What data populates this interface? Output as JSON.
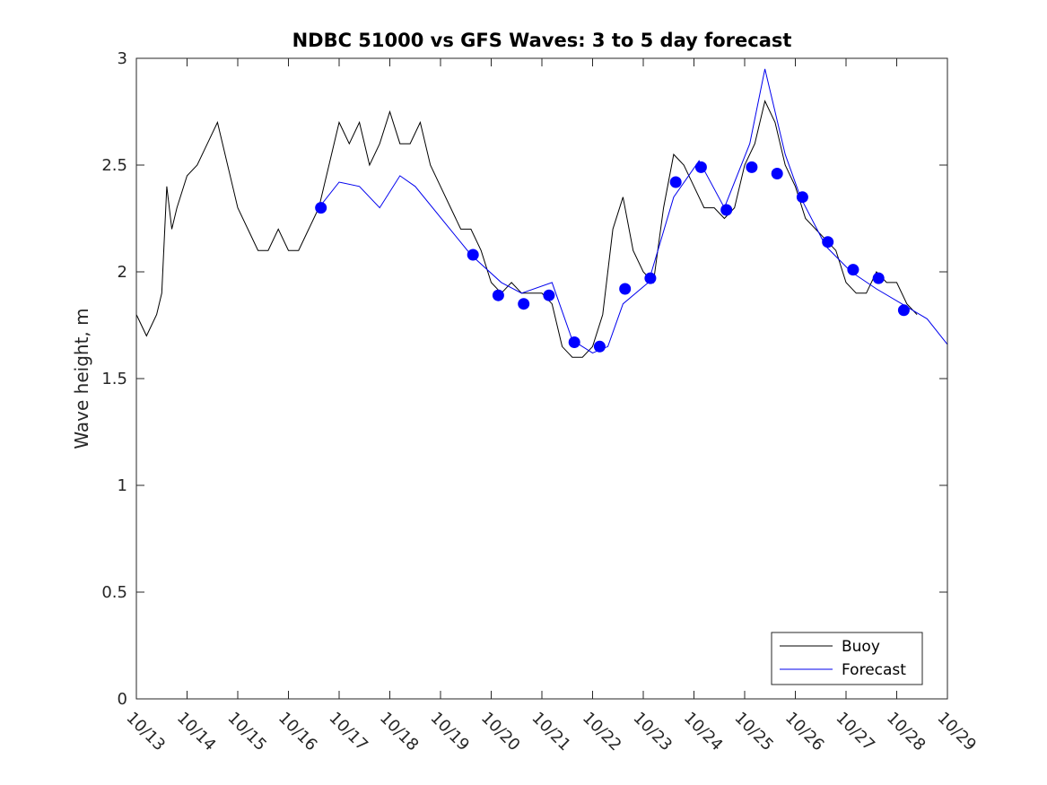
{
  "chart_data": {
    "type": "line",
    "title": "NDBC 51000 vs GFS Waves: 3 to 5 day forecast",
    "xlabel": "",
    "ylabel": "Wave height, m",
    "x_unit": "day of October",
    "xlim": [
      13,
      29
    ],
    "ylim": [
      0,
      3
    ],
    "x_ticks": [
      13,
      14,
      15,
      16,
      17,
      18,
      19,
      20,
      21,
      22,
      23,
      24,
      25,
      26,
      27,
      28,
      29
    ],
    "x_tick_labels": [
      "10/13",
      "10/14",
      "10/15",
      "10/16",
      "10/17",
      "10/18",
      "10/19",
      "10/20",
      "10/21",
      "10/22",
      "10/23",
      "10/24",
      "10/25",
      "10/26",
      "10/27",
      "10/28",
      "10/29"
    ],
    "y_ticks": [
      0,
      0.5,
      1,
      1.5,
      2,
      2.5,
      3
    ],
    "y_tick_labels": [
      "0",
      "0.5",
      "1",
      "1.5",
      "2",
      "2.5",
      "3"
    ],
    "grid": false,
    "legend_position": "bottom-right",
    "colors": {
      "buoy": "#000000",
      "forecast": "#0000ee",
      "markers": "#0000ff"
    },
    "series": [
      {
        "name": "Buoy",
        "style": "line",
        "x": [
          13.0,
          13.2,
          13.4,
          13.5,
          13.6,
          13.7,
          13.8,
          14.0,
          14.2,
          14.4,
          14.6,
          14.8,
          15.0,
          15.2,
          15.4,
          15.6,
          15.8,
          16.0,
          16.2,
          16.4,
          16.6,
          16.8,
          17.0,
          17.2,
          17.4,
          17.6,
          17.8,
          18.0,
          18.2,
          18.4,
          18.6,
          18.8,
          19.0,
          19.2,
          19.4,
          19.6,
          19.8,
          20.0,
          20.2,
          20.4,
          20.6,
          20.8,
          21.0,
          21.2,
          21.4,
          21.6,
          21.8,
          22.0,
          22.2,
          22.4,
          22.6,
          22.8,
          23.0,
          23.2,
          23.4,
          23.6,
          23.8,
          24.0,
          24.2,
          24.4,
          24.6,
          24.8,
          25.0,
          25.2,
          25.4,
          25.6,
          25.8,
          26.0,
          26.2,
          26.4,
          26.6,
          26.8,
          27.0,
          27.2,
          27.4,
          27.6,
          27.8,
          28.0,
          28.2,
          28.4
        ],
        "y": [
          1.8,
          1.7,
          1.8,
          1.9,
          2.4,
          2.2,
          2.3,
          2.45,
          2.5,
          2.6,
          2.7,
          2.5,
          2.3,
          2.2,
          2.1,
          2.1,
          2.2,
          2.1,
          2.1,
          2.2,
          2.3,
          2.5,
          2.7,
          2.6,
          2.7,
          2.5,
          2.6,
          2.75,
          2.6,
          2.6,
          2.7,
          2.5,
          2.4,
          2.3,
          2.2,
          2.2,
          2.1,
          1.95,
          1.9,
          1.95,
          1.9,
          1.9,
          1.9,
          1.85,
          1.65,
          1.6,
          1.6,
          1.65,
          1.8,
          2.2,
          2.35,
          2.1,
          2.0,
          1.95,
          2.3,
          2.55,
          2.5,
          2.4,
          2.3,
          2.3,
          2.25,
          2.3,
          2.5,
          2.6,
          2.8,
          2.7,
          2.5,
          2.4,
          2.25,
          2.2,
          2.15,
          2.1,
          1.95,
          1.9,
          1.9,
          2.0,
          1.95,
          1.95,
          1.85,
          1.8
        ]
      },
      {
        "name": "Forecast",
        "style": "line",
        "x": [
          16.6,
          17.0,
          17.4,
          17.8,
          18.2,
          18.5,
          19.6,
          20.2,
          20.6,
          21.2,
          21.6,
          22.0,
          22.3,
          22.6,
          23.1,
          23.6,
          24.1,
          24.6,
          25.1,
          25.4,
          25.8,
          26.1,
          26.6,
          27.1,
          27.6,
          28.1,
          28.6,
          29.0
        ],
        "y": [
          2.3,
          2.42,
          2.4,
          2.3,
          2.45,
          2.4,
          2.08,
          1.95,
          1.9,
          1.95,
          1.68,
          1.62,
          1.65,
          1.85,
          1.95,
          2.35,
          2.52,
          2.3,
          2.6,
          2.95,
          2.55,
          2.35,
          2.12,
          2.0,
          1.92,
          1.85,
          1.78,
          1.66
        ]
      },
      {
        "name": "",
        "style": "markers",
        "x": [
          16.64,
          19.64,
          20.14,
          20.64,
          21.14,
          21.64,
          22.14,
          22.64,
          23.14,
          23.64,
          24.14,
          24.64,
          25.14,
          25.64,
          26.14,
          26.64,
          27.14,
          27.64,
          28.14
        ],
        "y": [
          2.3,
          2.08,
          1.89,
          1.85,
          1.89,
          1.67,
          1.65,
          1.92,
          1.97,
          2.42,
          2.49,
          2.29,
          2.49,
          2.46,
          2.35,
          2.14,
          2.01,
          1.97,
          1.82
        ]
      }
    ]
  }
}
